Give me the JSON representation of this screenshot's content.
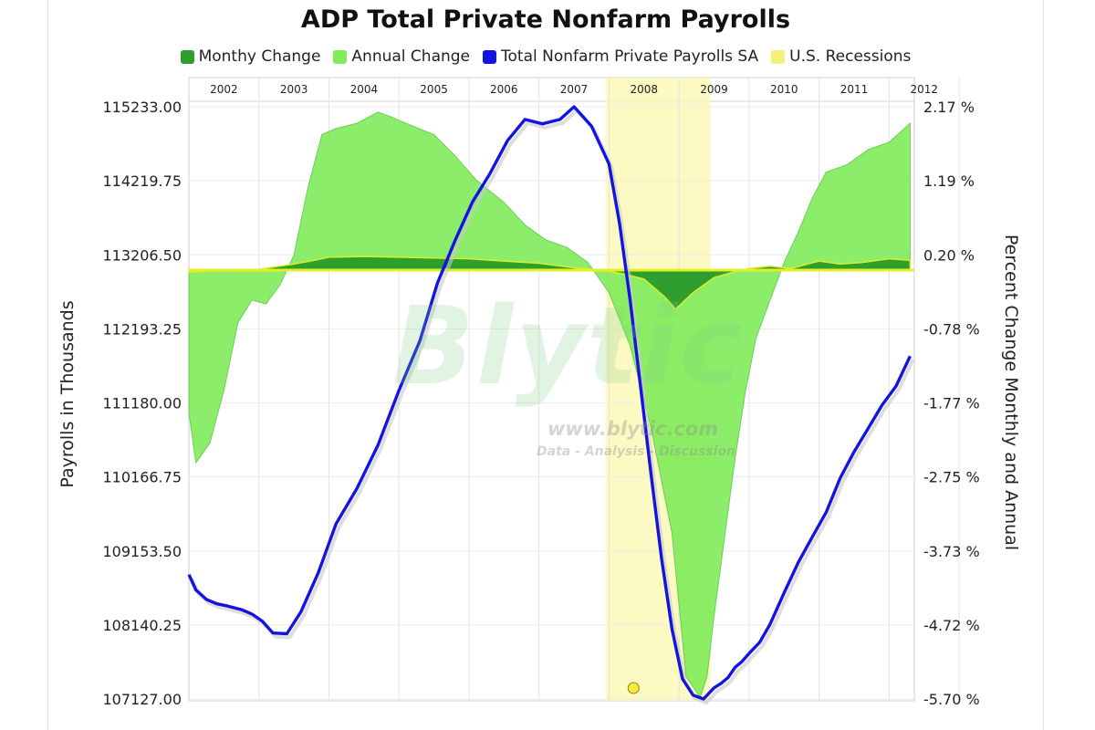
{
  "chart_data": {
    "type": "line",
    "title": "ADP Total Private Nonfarm Payrolls",
    "ylabel_left": "Payrolls in Thousands",
    "ylabel_right": "Percent Change Monthly and Annual",
    "years": [
      "2002",
      "2003",
      "2004",
      "2005",
      "2006",
      "2007",
      "2008",
      "2009",
      "2010",
      "2011",
      "2012"
    ],
    "ylim_left": [
      107127.0,
      115233.0
    ],
    "yticks_left": [
      "115233.00",
      "114219.75",
      "113206.50",
      "112193.25",
      "111180.00",
      "110166.75",
      "109153.50",
      "108140.25",
      "107127.00"
    ],
    "ylim_right": [
      -5.7,
      2.17
    ],
    "yticks_right": [
      "2.17 %",
      "1.19 %",
      "0.20 %",
      "-0.78 %",
      "-1.77 %",
      "-2.75 %",
      "-3.73 %",
      "-4.72 %",
      "-5.70 %"
    ],
    "recession": {
      "start": 2007.95,
      "end": 2009.45
    },
    "series": [
      {
        "name": "Monthy Change",
        "color": "#2e9e2e",
        "x": [
          2002.0,
          2002.5,
          2003.0,
          2003.2,
          2003.5,
          2003.8,
          2004.0,
          2004.5,
          2005.0,
          2005.5,
          2006.0,
          2006.5,
          2007.0,
          2007.5,
          2007.9,
          2008.2,
          2008.5,
          2008.8,
          2008.95,
          2009.2,
          2009.5,
          2009.8,
          2010.0,
          2010.3,
          2010.6,
          2011.0,
          2011.3,
          2011.6,
          2012.0,
          2012.3
        ],
        "values": [
          -0.03,
          0.0,
          0.01,
          0.04,
          0.08,
          0.13,
          0.17,
          0.18,
          0.17,
          0.16,
          0.15,
          0.12,
          0.09,
          0.03,
          0.0,
          -0.05,
          -0.12,
          -0.36,
          -0.52,
          -0.3,
          -0.1,
          -0.02,
          0.02,
          0.05,
          0.02,
          0.12,
          0.08,
          0.1,
          0.15,
          0.13
        ]
      },
      {
        "name": "Annual Change",
        "color": "#80ec5a",
        "x": [
          2002.0,
          2002.1,
          2002.3,
          2002.5,
          2002.7,
          2002.9,
          2003.1,
          2003.3,
          2003.5,
          2003.7,
          2003.9,
          2004.1,
          2004.4,
          2004.7,
          2004.9,
          2005.1,
          2005.5,
          2005.8,
          2006.1,
          2006.5,
          2006.8,
          2007.1,
          2007.4,
          2007.7,
          2008.0,
          2008.3,
          2008.6,
          2008.9,
          2009.1,
          2009.3,
          2009.4,
          2009.5,
          2009.6,
          2009.8,
          2009.95,
          2010.1,
          2010.3,
          2010.5,
          2010.7,
          2010.9,
          2011.1,
          2011.4,
          2011.7,
          2012.0,
          2012.3
        ],
        "values": [
          -1.9,
          -2.56,
          -2.3,
          -1.6,
          -0.7,
          -0.4,
          -0.45,
          -0.2,
          0.2,
          1.1,
          1.8,
          1.88,
          1.95,
          2.1,
          2.03,
          1.95,
          1.8,
          1.52,
          1.2,
          0.9,
          0.6,
          0.4,
          0.3,
          0.1,
          -0.3,
          -1.0,
          -2.1,
          -3.5,
          -5.4,
          -5.68,
          -5.4,
          -4.6,
          -3.9,
          -2.5,
          -1.6,
          -0.9,
          -0.4,
          0.1,
          0.5,
          0.95,
          1.3,
          1.4,
          1.6,
          1.7,
          1.95
        ]
      },
      {
        "name": "Total Nonfarm Private Payrolls SA",
        "color": "#1414e0",
        "x": [
          2002.0,
          2002.1,
          2002.25,
          2002.4,
          2002.55,
          2002.75,
          2002.9,
          2003.05,
          2003.2,
          2003.4,
          2003.6,
          2003.85,
          2004.1,
          2004.4,
          2004.7,
          2005.0,
          2005.3,
          2005.55,
          2005.8,
          2006.05,
          2006.3,
          2006.55,
          2006.8,
          2007.05,
          2007.3,
          2007.5,
          2007.75,
          2008.0,
          2008.15,
          2008.3,
          2008.45,
          2008.6,
          2008.75,
          2008.9,
          2009.05,
          2009.2,
          2009.35,
          2009.5,
          2009.6,
          2009.7,
          2009.8,
          2009.9,
          2010.0,
          2010.15,
          2010.3,
          2010.5,
          2010.7,
          2010.9,
          2011.1,
          2011.3,
          2011.5,
          2011.7,
          2011.9,
          2012.1,
          2012.3
        ],
        "values": [
          108830,
          108620,
          108490,
          108430,
          108400,
          108350,
          108290,
          108190,
          108030,
          108020,
          108320,
          108860,
          109520,
          110010,
          110600,
          111350,
          112030,
          112820,
          113400,
          113930,
          114320,
          114770,
          115060,
          115000,
          115060,
          115233,
          114970,
          114450,
          113640,
          112600,
          111400,
          110200,
          109050,
          108080,
          107400,
          107180,
          107127,
          107280,
          107340,
          107420,
          107560,
          107640,
          107750,
          107900,
          108150,
          108580,
          108990,
          109340,
          109680,
          110150,
          110510,
          110830,
          111150,
          111410,
          111820
        ]
      }
    ]
  },
  "watermark": {
    "brand": "Blytic",
    "url": "www.blytic.com",
    "tagline": "Data - Analysis - Discussion"
  }
}
